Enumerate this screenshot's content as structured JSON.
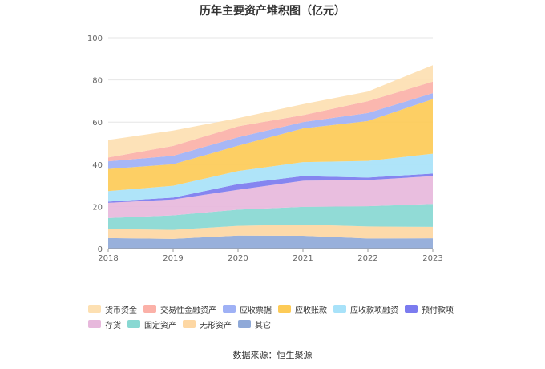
{
  "chart_data": {
    "type": "area",
    "stacked": true,
    "title": "历年主要资产堆积图（亿元）",
    "x": [
      "2018",
      "2019",
      "2020",
      "2021",
      "2022",
      "2023"
    ],
    "ylim": [
      0,
      100
    ],
    "yticks": [
      0,
      20,
      40,
      60,
      80,
      100
    ],
    "grid": true,
    "legend_position": "bottom",
    "series": [
      {
        "name": "其它",
        "color": "#8fa9d8",
        "values": [
          5.0,
          4.6,
          6.2,
          6.1,
          4.8,
          4.9
        ]
      },
      {
        "name": "无形资产",
        "color": "#fdd7a3",
        "values": [
          4.3,
          4.3,
          4.6,
          5.3,
          5.7,
          5.4
        ]
      },
      {
        "name": "固定资产",
        "color": "#88d8d2",
        "values": [
          5.2,
          6.9,
          7.7,
          8.4,
          9.6,
          10.9
        ]
      },
      {
        "name": "存货",
        "color": "#e7b8dc",
        "values": [
          7.2,
          7.5,
          9.4,
          12.4,
          12.4,
          13.2
        ]
      },
      {
        "name": "预付款项",
        "color": "#7b7bef",
        "values": [
          0.6,
          0.9,
          2.7,
          2.2,
          1.2,
          1.2
        ]
      },
      {
        "name": "应收款项融资",
        "color": "#a8e2f9",
        "values": [
          5.0,
          5.6,
          6.2,
          6.6,
          7.9,
          9.4
        ]
      },
      {
        "name": "应收账款",
        "color": "#fdcb57",
        "values": [
          10.5,
          10.2,
          12.0,
          16.0,
          18.9,
          25.9
        ]
      },
      {
        "name": "应收票据",
        "color": "#9fb1f5",
        "values": [
          3.6,
          4.0,
          4.0,
          3.0,
          3.8,
          2.8
        ]
      },
      {
        "name": "交易性金融资产",
        "color": "#fbb1a8",
        "values": [
          1.8,
          4.7,
          5.2,
          3.3,
          5.6,
          5.5
        ]
      },
      {
        "name": "货币资金",
        "color": "#fde0b2",
        "values": [
          8.3,
          7.3,
          3.9,
          5.2,
          4.6,
          7.8
        ]
      }
    ]
  },
  "legend": {
    "row1": [
      "货币资金",
      "交易性金融资产",
      "应收票据",
      "应收账款",
      "应收款项融资",
      "预付款项"
    ],
    "row2": [
      "存货",
      "固定资产",
      "无形资产",
      "其它"
    ]
  },
  "source": "数据来源：恒生聚源"
}
